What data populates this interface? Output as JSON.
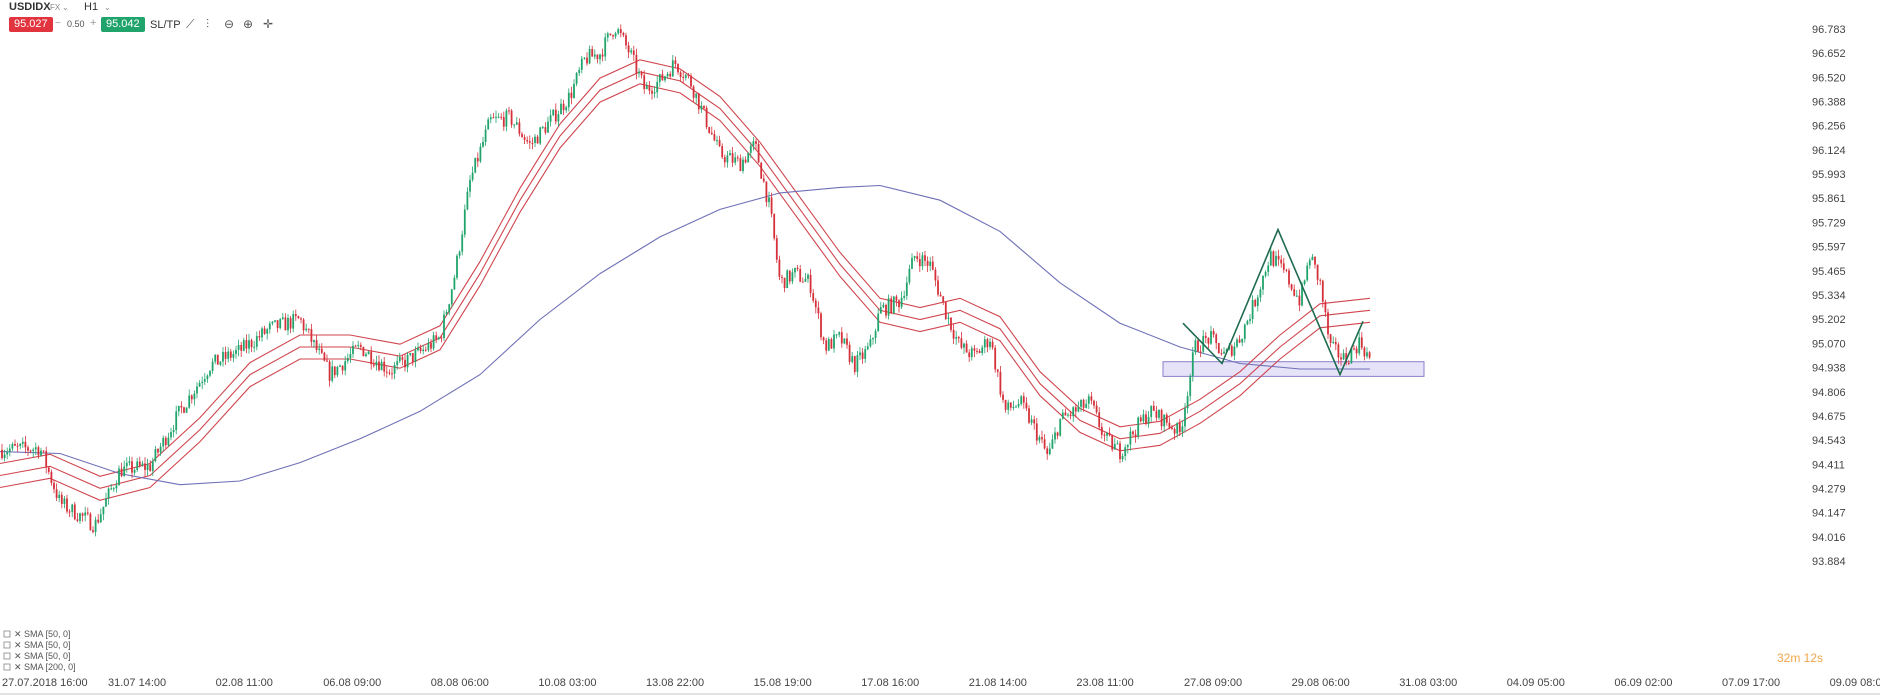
{
  "toolbar": {
    "symbol": "USDIDX",
    "market": "FX",
    "timeframe": "H1",
    "sell_price": "95.027",
    "spread": "0.50",
    "buy_price": "95.042",
    "sltp_label": "SL/TP"
  },
  "timer": "32m 12s",
  "colors": {
    "bull": "#20a46c",
    "bear": "#d6303a",
    "sma50": "#d0454d",
    "sma200": "#6e70b6",
    "pattern": "#1f6b4f",
    "zone": "#dcd6f5"
  },
  "chart_data": {
    "type": "candlestick",
    "yticks": [
      96.783,
      96.652,
      96.52,
      96.388,
      96.256,
      96.124,
      95.993,
      95.861,
      95.729,
      95.597,
      95.465,
      95.334,
      95.202,
      95.07,
      94.938,
      94.806,
      94.675,
      94.543,
      94.411,
      94.279,
      94.147,
      94.016,
      93.884
    ],
    "ylim": [
      93.884,
      96.783
    ],
    "xticks": [
      "27.07.2018 16:00",
      "31.07 14:00",
      "02.08 11:00",
      "06.08 09:00",
      "08.08 06:00",
      "10.08 03:00",
      "13.08 22:00",
      "15.08 19:00",
      "17.08 16:00",
      "21.08 14:00",
      "23.08 11:00",
      "27.08 09:00",
      "29.08 06:00",
      "31.08 03:00",
      "04.09 05:00",
      "06.09 02:00",
      "07.09 17:00",
      "09.09 08:00"
    ],
    "xlim": [
      0,
      1880
    ],
    "close_path": [
      [
        0,
        94.49
      ],
      [
        40,
        94.5
      ],
      [
        60,
        94.2
      ],
      [
        95,
        94.08
      ],
      [
        120,
        94.38
      ],
      [
        150,
        94.4
      ],
      [
        180,
        94.7
      ],
      [
        210,
        94.95
      ],
      [
        240,
        95.03
      ],
      [
        270,
        95.15
      ],
      [
        300,
        95.2
      ],
      [
        330,
        94.9
      ],
      [
        360,
        95.05
      ],
      [
        390,
        94.92
      ],
      [
        420,
        95.02
      ],
      [
        440,
        95.1
      ],
      [
        455,
        95.45
      ],
      [
        470,
        95.95
      ],
      [
        490,
        96.28
      ],
      [
        510,
        96.3
      ],
      [
        530,
        96.15
      ],
      [
        550,
        96.28
      ],
      [
        570,
        96.42
      ],
      [
        585,
        96.62
      ],
      [
        600,
        96.65
      ],
      [
        615,
        96.8
      ],
      [
        630,
        96.65
      ],
      [
        645,
        96.45
      ],
      [
        660,
        96.5
      ],
      [
        675,
        96.6
      ],
      [
        690,
        96.5
      ],
      [
        705,
        96.3
      ],
      [
        720,
        96.1
      ],
      [
        740,
        96.05
      ],
      [
        755,
        96.15
      ],
      [
        770,
        95.8
      ],
      [
        780,
        95.4
      ],
      [
        795,
        95.45
      ],
      [
        810,
        95.4
      ],
      [
        825,
        95.05
      ],
      [
        840,
        95.1
      ],
      [
        855,
        94.95
      ],
      [
        870,
        95.05
      ],
      [
        880,
        95.25
      ],
      [
        900,
        95.3
      ],
      [
        915,
        95.55
      ],
      [
        930,
        95.5
      ],
      [
        945,
        95.25
      ],
      [
        960,
        95.05
      ],
      [
        975,
        95.0
      ],
      [
        990,
        95.1
      ],
      [
        1005,
        94.7
      ],
      [
        1020,
        94.75
      ],
      [
        1035,
        94.6
      ],
      [
        1048,
        94.45
      ],
      [
        1060,
        94.65
      ],
      [
        1075,
        94.7
      ],
      [
        1090,
        94.75
      ],
      [
        1105,
        94.55
      ],
      [
        1120,
        94.48
      ],
      [
        1135,
        94.6
      ],
      [
        1150,
        94.7
      ],
      [
        1165,
        94.65
      ],
      [
        1180,
        94.58
      ],
      [
        1195,
        95.05
      ],
      [
        1210,
        95.1
      ],
      [
        1225,
        95.0
      ],
      [
        1240,
        95.1
      ],
      [
        1255,
        95.3
      ],
      [
        1270,
        95.55
      ],
      [
        1285,
        95.45
      ],
      [
        1300,
        95.3
      ],
      [
        1310,
        95.55
      ],
      [
        1320,
        95.4
      ],
      [
        1330,
        95.05
      ],
      [
        1345,
        94.98
      ],
      [
        1360,
        95.08
      ],
      [
        1370,
        94.98
      ]
    ],
    "sma50_path": [
      [
        0,
        94.35
      ],
      [
        50,
        94.4
      ],
      [
        100,
        94.28
      ],
      [
        150,
        94.35
      ],
      [
        200,
        94.6
      ],
      [
        250,
        94.9
      ],
      [
        300,
        95.05
      ],
      [
        350,
        95.05
      ],
      [
        400,
        95.0
      ],
      [
        440,
        95.1
      ],
      [
        480,
        95.45
      ],
      [
        520,
        95.85
      ],
      [
        560,
        96.2
      ],
      [
        600,
        96.45
      ],
      [
        640,
        96.55
      ],
      [
        680,
        96.5
      ],
      [
        720,
        96.35
      ],
      [
        760,
        96.1
      ],
      [
        800,
        95.8
      ],
      [
        840,
        95.5
      ],
      [
        880,
        95.25
      ],
      [
        920,
        95.2
      ],
      [
        960,
        95.25
      ],
      [
        1000,
        95.15
      ],
      [
        1040,
        94.85
      ],
      [
        1080,
        94.65
      ],
      [
        1120,
        94.55
      ],
      [
        1160,
        94.58
      ],
      [
        1200,
        94.7
      ],
      [
        1240,
        94.85
      ],
      [
        1280,
        95.05
      ],
      [
        1320,
        95.22
      ],
      [
        1370,
        95.25
      ]
    ],
    "sma200_path": [
      [
        0,
        94.48
      ],
      [
        60,
        94.47
      ],
      [
        120,
        94.36
      ],
      [
        180,
        94.3
      ],
      [
        240,
        94.32
      ],
      [
        300,
        94.42
      ],
      [
        360,
        94.55
      ],
      [
        420,
        94.7
      ],
      [
        480,
        94.9
      ],
      [
        540,
        95.2
      ],
      [
        600,
        95.45
      ],
      [
        660,
        95.65
      ],
      [
        720,
        95.8
      ],
      [
        780,
        95.89
      ],
      [
        840,
        95.92
      ],
      [
        880,
        95.93
      ],
      [
        940,
        95.85
      ],
      [
        1000,
        95.68
      ],
      [
        1060,
        95.4
      ],
      [
        1120,
        95.18
      ],
      [
        1180,
        95.05
      ],
      [
        1240,
        94.96
      ],
      [
        1300,
        94.93
      ],
      [
        1370,
        94.93
      ]
    ],
    "support_zone": {
      "x1": 1163,
      "x2": 1424,
      "ymin": 94.89,
      "ymax": 94.97
    },
    "pattern_path": [
      [
        1183,
        95.18
      ],
      [
        1222,
        94.96
      ],
      [
        1278,
        95.69
      ],
      [
        1340,
        94.9
      ],
      [
        1363,
        95.19
      ]
    ],
    "legend": [
      "SMA [50, 0]",
      "SMA [50, 0]",
      "SMA [50, 0]",
      "SMA [200, 0]"
    ]
  }
}
